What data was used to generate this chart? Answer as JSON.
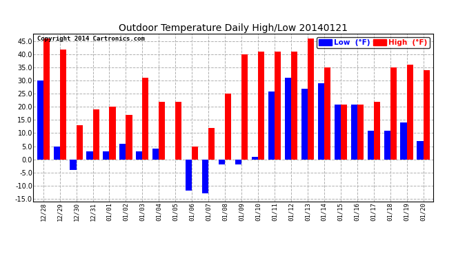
{
  "title": "Outdoor Temperature Daily High/Low 20140121",
  "copyright_text": "Copyright 2014 Cartronics.com",
  "legend_low_label": "Low  (°F)",
  "legend_high_label": "High  (°F)",
  "legend_low_color": "#0000ff",
  "legend_high_color": "#ff0000",
  "bar_low_color": "#0000ff",
  "bar_high_color": "#ff0000",
  "background_color": "#ffffff",
  "plot_background_color": "#ffffff",
  "grid_color": "#b0b0b0",
  "ylim": [
    -16,
    48
  ],
  "yticks": [
    -15.0,
    -10.0,
    -5.0,
    0.0,
    5.0,
    10.0,
    15.0,
    20.0,
    25.0,
    30.0,
    35.0,
    40.0,
    45.0
  ],
  "dates": [
    "12/28",
    "12/29",
    "12/30",
    "12/31",
    "01/01",
    "01/02",
    "01/03",
    "01/04",
    "01/05",
    "01/06",
    "01/07",
    "01/08",
    "01/09",
    "01/10",
    "01/11",
    "01/12",
    "01/13",
    "01/14",
    "01/15",
    "01/16",
    "01/17",
    "01/18",
    "01/19",
    "01/20"
  ],
  "lows": [
    30,
    5,
    -4,
    3,
    3,
    6,
    3,
    4,
    0,
    -12,
    -13,
    -2,
    -2,
    1,
    26,
    31,
    27,
    29,
    21,
    21,
    11,
    11,
    14,
    7
  ],
  "highs": [
    46,
    42,
    13,
    19,
    20,
    17,
    31,
    22,
    22,
    5,
    12,
    25,
    40,
    41,
    41,
    41,
    46,
    35,
    21,
    21,
    22,
    35,
    36,
    34
  ]
}
